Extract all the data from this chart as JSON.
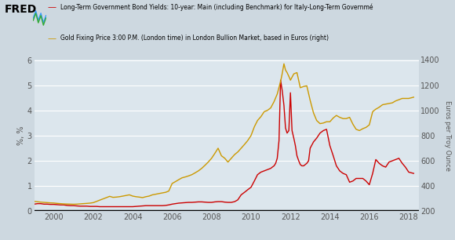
{
  "title_fred": "FRED",
  "legend_line1": "Long-Term Government Bond Yields: 10-year: Main (including Benchmark) for Italy-Long-Term Governmé",
  "legend_line2": "Gold Fixing Price 3:00 P.M. (London time) in London Bullion Market, based in Euros (right)",
  "ylabel_left": "%, %",
  "ylabel_right": "Euros per Troy Ounce",
  "ylim_left": [
    0,
    6
  ],
  "ylim_right": [
    200,
    1400
  ],
  "yticks_left": [
    0,
    1,
    2,
    3,
    4,
    5,
    6
  ],
  "yticks_right": [
    200,
    400,
    600,
    800,
    1000,
    1200,
    1400
  ],
  "xlim": [
    1999.0,
    2018.5
  ],
  "xticks": [
    2000,
    2002,
    2004,
    2006,
    2008,
    2010,
    2012,
    2014,
    2016,
    2018
  ],
  "background_color": "#cdd8e0",
  "plot_bg_color": "#dce6ed",
  "grid_color": "#ffffff",
  "red_color": "#cc0000",
  "gold_color": "#cc9900",
  "line_width": 1.0,
  "red_data": {
    "years": [
      1999.0,
      1999.17,
      1999.33,
      1999.5,
      1999.67,
      1999.83,
      2000.0,
      2000.17,
      2000.33,
      2000.5,
      2000.67,
      2000.83,
      2001.0,
      2001.17,
      2001.33,
      2001.5,
      2001.67,
      2001.83,
      2002.0,
      2002.17,
      2002.33,
      2002.5,
      2002.67,
      2002.83,
      2003.0,
      2003.17,
      2003.33,
      2003.5,
      2003.67,
      2003.83,
      2004.0,
      2004.17,
      2004.33,
      2004.5,
      2004.67,
      2004.83,
      2005.0,
      2005.17,
      2005.33,
      2005.5,
      2005.67,
      2005.83,
      2006.0,
      2006.17,
      2006.33,
      2006.5,
      2006.67,
      2006.83,
      2007.0,
      2007.17,
      2007.33,
      2007.5,
      2007.67,
      2007.83,
      2008.0,
      2008.17,
      2008.33,
      2008.5,
      2008.67,
      2008.83,
      2009.0,
      2009.17,
      2009.33,
      2009.5,
      2009.67,
      2009.83,
      2010.0,
      2010.17,
      2010.33,
      2010.5,
      2010.67,
      2010.83,
      2011.0,
      2011.08,
      2011.17,
      2011.25,
      2011.33,
      2011.42,
      2011.5,
      2011.58,
      2011.67,
      2011.75,
      2011.83,
      2011.92,
      2012.0,
      2012.08,
      2012.17,
      2012.25,
      2012.33,
      2012.42,
      2012.5,
      2012.58,
      2012.67,
      2012.75,
      2012.83,
      2012.92,
      2013.0,
      2013.17,
      2013.33,
      2013.5,
      2013.67,
      2013.83,
      2014.0,
      2014.17,
      2014.33,
      2014.5,
      2014.67,
      2014.83,
      2015.0,
      2015.17,
      2015.33,
      2015.5,
      2015.67,
      2015.83,
      2016.0,
      2016.17,
      2016.33,
      2016.5,
      2016.67,
      2016.83,
      2017.0,
      2017.17,
      2017.33,
      2017.5,
      2017.67,
      2017.83,
      2018.0,
      2018.25
    ],
    "values": [
      0.28,
      0.3,
      0.3,
      0.28,
      0.28,
      0.27,
      0.27,
      0.26,
      0.25,
      0.25,
      0.23,
      0.22,
      0.22,
      0.21,
      0.2,
      0.2,
      0.2,
      0.19,
      0.19,
      0.19,
      0.18,
      0.18,
      0.18,
      0.18,
      0.18,
      0.18,
      0.18,
      0.18,
      0.18,
      0.18,
      0.18,
      0.19,
      0.2,
      0.21,
      0.22,
      0.22,
      0.22,
      0.22,
      0.22,
      0.22,
      0.23,
      0.25,
      0.28,
      0.3,
      0.32,
      0.33,
      0.34,
      0.35,
      0.35,
      0.36,
      0.37,
      0.37,
      0.36,
      0.35,
      0.35,
      0.37,
      0.38,
      0.38,
      0.36,
      0.35,
      0.35,
      0.38,
      0.45,
      0.65,
      0.75,
      0.85,
      0.95,
      1.2,
      1.45,
      1.55,
      1.6,
      1.65,
      1.7,
      1.75,
      1.8,
      1.9,
      2.1,
      2.8,
      5.2,
      4.8,
      4.2,
      3.3,
      3.1,
      3.2,
      4.7,
      3.2,
      2.9,
      2.6,
      2.2,
      2.0,
      1.85,
      1.8,
      1.8,
      1.85,
      1.9,
      2.0,
      2.5,
      2.75,
      2.9,
      3.1,
      3.2,
      3.25,
      2.6,
      2.2,
      1.8,
      1.6,
      1.5,
      1.45,
      1.15,
      1.2,
      1.3,
      1.3,
      1.3,
      1.2,
      1.05,
      1.5,
      2.05,
      1.9,
      1.8,
      1.75,
      1.95,
      2.0,
      2.05,
      2.1,
      1.9,
      1.75,
      1.55,
      1.5
    ]
  },
  "gold_data": {
    "years": [
      1999.0,
      1999.17,
      1999.33,
      1999.5,
      1999.67,
      1999.83,
      2000.0,
      2000.17,
      2000.33,
      2000.5,
      2000.67,
      2000.83,
      2001.0,
      2001.17,
      2001.33,
      2001.5,
      2001.67,
      2001.83,
      2002.0,
      2002.17,
      2002.33,
      2002.5,
      2002.67,
      2002.83,
      2003.0,
      2003.17,
      2003.33,
      2003.5,
      2003.67,
      2003.83,
      2004.0,
      2004.17,
      2004.33,
      2004.5,
      2004.67,
      2004.83,
      2005.0,
      2005.17,
      2005.33,
      2005.5,
      2005.67,
      2005.83,
      2006.0,
      2006.17,
      2006.33,
      2006.5,
      2006.67,
      2006.83,
      2007.0,
      2007.17,
      2007.33,
      2007.5,
      2007.67,
      2007.83,
      2008.0,
      2008.17,
      2008.33,
      2008.5,
      2008.67,
      2008.83,
      2009.0,
      2009.17,
      2009.33,
      2009.5,
      2009.67,
      2009.83,
      2010.0,
      2010.17,
      2010.33,
      2010.5,
      2010.67,
      2010.83,
      2011.0,
      2011.17,
      2011.33,
      2011.5,
      2011.58,
      2011.67,
      2011.75,
      2011.83,
      2011.92,
      2012.0,
      2012.17,
      2012.33,
      2012.5,
      2012.67,
      2012.83,
      2013.0,
      2013.17,
      2013.33,
      2013.5,
      2013.67,
      2013.83,
      2014.0,
      2014.17,
      2014.33,
      2014.5,
      2014.67,
      2014.83,
      2015.0,
      2015.17,
      2015.33,
      2015.5,
      2015.67,
      2015.83,
      2016.0,
      2016.17,
      2016.33,
      2016.5,
      2016.67,
      2016.83,
      2017.0,
      2017.17,
      2017.33,
      2017.5,
      2017.67,
      2017.83,
      2018.0,
      2018.25
    ],
    "values": [
      278,
      275,
      272,
      270,
      268,
      266,
      265,
      262,
      260,
      258,
      257,
      256,
      255,
      256,
      258,
      260,
      262,
      264,
      268,
      278,
      288,
      298,
      308,
      318,
      310,
      312,
      315,
      320,
      325,
      330,
      320,
      315,
      312,
      308,
      315,
      320,
      330,
      335,
      340,
      345,
      350,
      360,
      420,
      435,
      450,
      465,
      472,
      480,
      490,
      505,
      520,
      540,
      565,
      590,
      620,
      660,
      700,
      640,
      620,
      590,
      620,
      650,
      670,
      700,
      730,
      760,
      800,
      870,
      920,
      950,
      990,
      1000,
      1020,
      1070,
      1130,
      1230,
      1290,
      1370,
      1320,
      1300,
      1270,
      1240,
      1290,
      1300,
      1180,
      1190,
      1195,
      1080,
      980,
      920,
      895,
      900,
      910,
      910,
      940,
      960,
      945,
      935,
      935,
      945,
      890,
      850,
      840,
      855,
      865,
      885,
      990,
      1010,
      1025,
      1045,
      1050,
      1055,
      1060,
      1075,
      1085,
      1095,
      1095,
      1095,
      1105
    ]
  }
}
